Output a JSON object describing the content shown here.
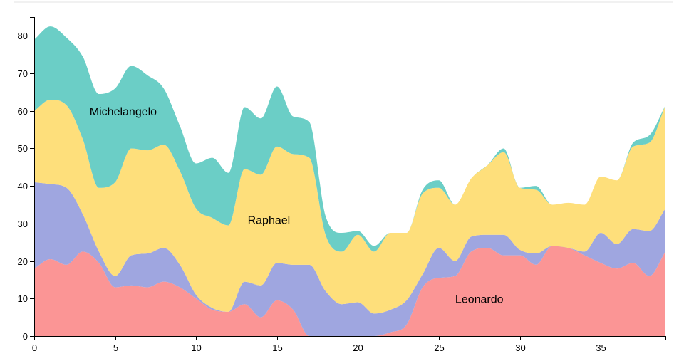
{
  "chart_data": {
    "type": "area",
    "stacked": true,
    "smooth": true,
    "x": [
      0,
      1,
      2,
      3,
      4,
      5,
      6,
      7,
      8,
      9,
      10,
      11,
      12,
      13,
      14,
      15,
      16,
      17,
      18,
      19,
      20,
      21,
      22,
      23,
      24,
      25,
      26,
      27,
      28,
      29,
      30,
      31,
      32,
      33,
      34,
      35,
      36,
      37,
      38,
      39
    ],
    "xlim": [
      0,
      39
    ],
    "ylim": [
      0,
      85
    ],
    "x_ticks": [
      0,
      5,
      10,
      15,
      20,
      25,
      30,
      35
    ],
    "y_ticks": [
      0,
      10,
      20,
      30,
      40,
      50,
      60,
      70,
      80
    ],
    "xlabel": "",
    "ylabel": "",
    "title": "",
    "legend": "none",
    "grid": false,
    "series": [
      {
        "name": "Leonardo",
        "color": "#fb9595",
        "label_at": [
          27.5,
          10
        ],
        "values": [
          18,
          20.5,
          19,
          22.5,
          19.5,
          13,
          13.5,
          13,
          14.5,
          13,
          10,
          7,
          6.5,
          8.5,
          5,
          9.5,
          7,
          0,
          0,
          0,
          0,
          0,
          1,
          3,
          13,
          15.5,
          16,
          22.5,
          23.5,
          21.5,
          21.5,
          19,
          24,
          23.5,
          21.5,
          19.5,
          18,
          19.5,
          16,
          22.5
        ]
      },
      {
        "name": "",
        "color": "#9fa6e0",
        "values": [
          23,
          20,
          20.5,
          10,
          3,
          3,
          8,
          9,
          9,
          6,
          1,
          0.5,
          0,
          6,
          8.5,
          10,
          12,
          19,
          12,
          8.5,
          9,
          6,
          6,
          6.5,
          3.5,
          8,
          4,
          4,
          3.5,
          5.5,
          1.5,
          3,
          0,
          0,
          1,
          8,
          6.5,
          9,
          12,
          11.5
        ]
      },
      {
        "name": "Raphael",
        "color": "#fedf7b",
        "label_at": [
          14.5,
          31
        ],
        "values": [
          19,
          22.5,
          22,
          20,
          17,
          25,
          28.5,
          27.5,
          27.5,
          25,
          23,
          24,
          23,
          30,
          29.5,
          31,
          29.5,
          28.5,
          15,
          14,
          18,
          16.5,
          20.5,
          18,
          21.5,
          16,
          15,
          15.5,
          18.5,
          22,
          16.5,
          17,
          11,
          12,
          12.5,
          15,
          17,
          22,
          23.5,
          27.5
        ]
      },
      {
        "name": "Michelangelo",
        "color": "#6bcec6",
        "label_at": [
          5.5,
          60
        ],
        "values": [
          19,
          19.5,
          18,
          22,
          25,
          25,
          22,
          20,
          15,
          12,
          12,
          16,
          14,
          16.5,
          15,
          16,
          10,
          9.5,
          5,
          5,
          1,
          1.5,
          0,
          0,
          1,
          2,
          0,
          0,
          0,
          1,
          0,
          1,
          0,
          0,
          0,
          0,
          0,
          1,
          2,
          0
        ]
      }
    ]
  }
}
